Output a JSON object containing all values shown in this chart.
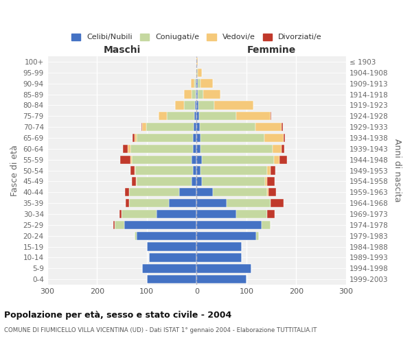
{
  "age_groups": [
    "0-4",
    "5-9",
    "10-14",
    "15-19",
    "20-24",
    "25-29",
    "30-34",
    "35-39",
    "40-44",
    "45-49",
    "50-54",
    "55-59",
    "60-64",
    "65-69",
    "70-74",
    "75-79",
    "80-84",
    "85-89",
    "90-94",
    "95-99",
    "100+"
  ],
  "birth_years": [
    "1999-2003",
    "1994-1998",
    "1989-1993",
    "1984-1988",
    "1979-1983",
    "1974-1978",
    "1969-1973",
    "1964-1968",
    "1959-1963",
    "1954-1958",
    "1949-1953",
    "1944-1948",
    "1939-1943",
    "1934-1938",
    "1929-1933",
    "1924-1928",
    "1919-1923",
    "1914-1918",
    "1909-1913",
    "1904-1908",
    "≤ 1903"
  ],
  "colors": {
    "celibi": "#4472C4",
    "coniugati": "#c5d8a0",
    "vedovi": "#f5c97a",
    "divorziati": "#c0392b"
  },
  "maschi": {
    "celibi": [
      100,
      110,
      95,
      100,
      120,
      145,
      80,
      55,
      35,
      10,
      8,
      10,
      8,
      8,
      6,
      5,
      3,
      2,
      2,
      0,
      0
    ],
    "coniugati": [
      0,
      0,
      0,
      0,
      5,
      20,
      70,
      80,
      100,
      110,
      115,
      120,
      125,
      112,
      95,
      55,
      22,
      8,
      2,
      0,
      0
    ],
    "vedovi": [
      0,
      0,
      0,
      0,
      0,
      0,
      0,
      0,
      1,
      2,
      2,
      3,
      5,
      4,
      8,
      16,
      18,
      15,
      8,
      2,
      0
    ],
    "divorziati": [
      0,
      0,
      0,
      0,
      0,
      2,
      5,
      8,
      8,
      8,
      8,
      20,
      10,
      5,
      2,
      0,
      0,
      0,
      0,
      0,
      0
    ]
  },
  "femmine": {
    "celibi": [
      100,
      110,
      90,
      90,
      120,
      130,
      80,
      60,
      32,
      10,
      8,
      10,
      8,
      8,
      6,
      5,
      4,
      3,
      3,
      0,
      0
    ],
    "coniugati": [
      0,
      0,
      0,
      0,
      5,
      18,
      62,
      88,
      110,
      128,
      133,
      145,
      145,
      128,
      112,
      75,
      32,
      10,
      5,
      3,
      0
    ],
    "vedovi": [
      0,
      0,
      0,
      0,
      0,
      0,
      0,
      1,
      3,
      4,
      7,
      12,
      18,
      38,
      52,
      68,
      78,
      35,
      25,
      8,
      2
    ],
    "divorziati": [
      0,
      0,
      0,
      0,
      0,
      0,
      15,
      25,
      15,
      15,
      10,
      15,
      5,
      4,
      3,
      2,
      0,
      0,
      0,
      0,
      0
    ]
  },
  "title": "Popolazione per età, sesso e stato civile - 2004",
  "subtitle": "COMUNE DI FIUMICELLO VILLA VICENTINA (UD) - Dati ISTAT 1° gennaio 2004 - Elaborazione TUTTITALIA.IT",
  "xlabel_left": "Maschi",
  "xlabel_right": "Femmine",
  "ylabel_left": "Fasce di età",
  "ylabel_right": "Anni di nascita",
  "xlim": 300,
  "legend_labels": [
    "Celibi/Nubili",
    "Coniugati/e",
    "Vedovi/e",
    "Divorziati/e"
  ],
  "background_color": "#f0f0f0"
}
